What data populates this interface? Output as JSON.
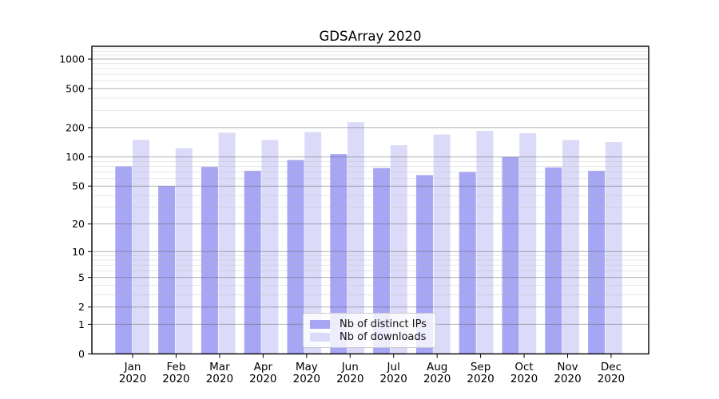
{
  "chart_data": {
    "type": "bar",
    "title": "GDSArray 2020",
    "categories": [
      "Jan 2020",
      "Feb 2020",
      "Mar 2020",
      "Apr 2020",
      "May 2020",
      "Jun 2020",
      "Jul 2020",
      "Aug 2020",
      "Sep 2020",
      "Oct 2020",
      "Nov 2020",
      "Dec 2020"
    ],
    "series": [
      {
        "name": "Nb of distinct IPs",
        "color": "#a6a6f4",
        "values": [
          80,
          50,
          79,
          72,
          93,
          107,
          77,
          65,
          70,
          100,
          78,
          72
        ]
      },
      {
        "name": "Nb of downloads",
        "color": "#dbdbf9",
        "values": [
          150,
          123,
          177,
          149,
          180,
          227,
          132,
          170,
          185,
          175,
          149,
          142
        ]
      }
    ],
    "xlabel": "",
    "ylabel": "",
    "y_scale": "log10(value+1)",
    "ylim": [
      0,
      1350
    ],
    "y_ticks": [
      0,
      1,
      2,
      5,
      10,
      20,
      50,
      100,
      200,
      500,
      1000
    ],
    "y_minor_ticks": [
      3,
      4,
      6,
      7,
      8,
      9,
      30,
      40,
      60,
      70,
      80,
      90,
      300,
      400,
      600,
      700,
      800,
      900,
      1100,
      1200,
      1300
    ],
    "grid": true,
    "legend_position": "lower center"
  },
  "colors": {
    "grid_major": "rgba(100,100,100,0.5)",
    "grid_minor": "rgba(180,180,180,0.36)",
    "spine": "#000000",
    "tick_label": "#000000"
  }
}
